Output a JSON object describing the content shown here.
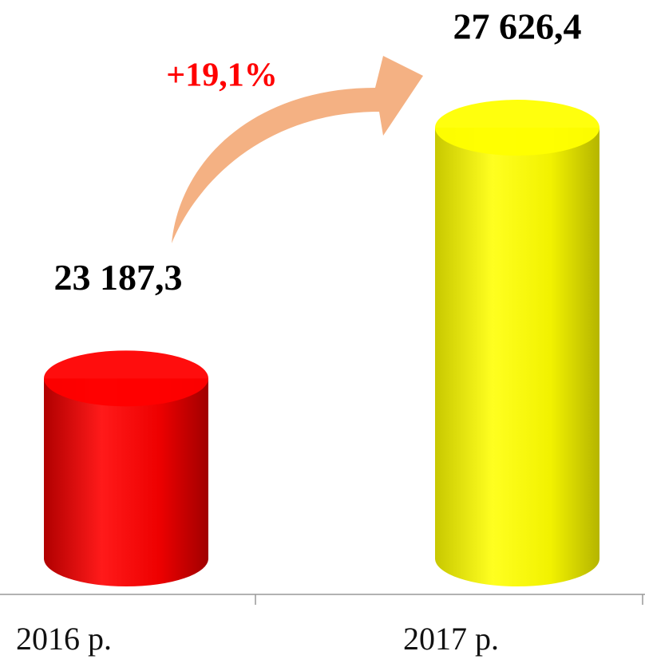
{
  "chart_data": {
    "type": "bar3d",
    "categories": [
      "2016 р.",
      "2017 р."
    ],
    "values": [
      23187.3,
      27626.4
    ],
    "value_labels": [
      "23 187,3",
      "27 626,4"
    ],
    "colors": [
      "#ff0000",
      "#ffff00"
    ],
    "ylim": [
      20000,
      28000
    ],
    "annotation": "+19,1%"
  }
}
